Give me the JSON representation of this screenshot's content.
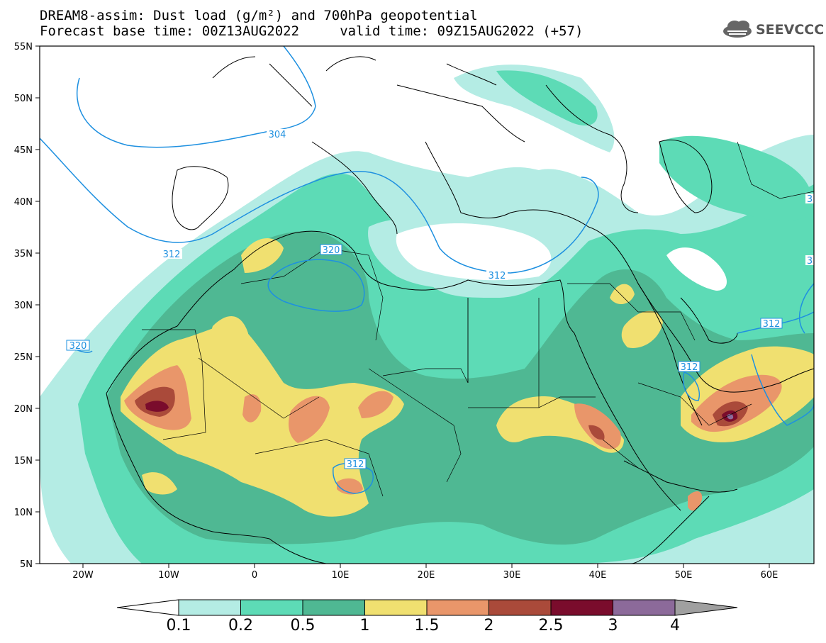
{
  "header": {
    "line1": "DREAM8-assim: Dust load (g/m²) and 700hPa geopotential",
    "line2": "Forecast base time: 00Z13AUG2022     valid time: 09Z15AUG2022 (+57)"
  },
  "logo": {
    "text": "SEEVCCC",
    "icon": "cloud-logo-icon"
  },
  "map": {
    "lon_range": [
      -25,
      65
    ],
    "lat_range": [
      5,
      55
    ],
    "lat_ticks": [
      "55N",
      "50N",
      "45N",
      "40N",
      "35N",
      "30N",
      "25N",
      "20N",
      "15N",
      "10N",
      "5N"
    ],
    "lon_ticks": [
      "20W",
      "10W",
      "0",
      "10E",
      "20E",
      "30E",
      "40E",
      "50E",
      "60E"
    ],
    "contour_labels": [
      "304",
      "312",
      "320",
      "320",
      "312",
      "312",
      "312",
      "312",
      "3",
      "3"
    ]
  },
  "colorbar": {
    "levels": [
      "0.1",
      "0.2",
      "0.5",
      "1",
      "1.5",
      "2",
      "2.5",
      "3",
      "4"
    ],
    "colors": [
      "#b4ece4",
      "#5ddbb6",
      "#4fb893",
      "#f0e070",
      "#e9966a",
      "#aa4a3a",
      "#7a0c2c",
      "#8c6a9a",
      "#a0a0a0"
    ]
  },
  "colors": {
    "c01": "#b4ece4",
    "c02": "#5ddbb6",
    "c05": "#4fb893",
    "c1": "#f0e070",
    "c15": "#e9966a",
    "c2": "#aa4a3a",
    "c25": "#7a0c2c",
    "contour": "#1e90e0"
  }
}
